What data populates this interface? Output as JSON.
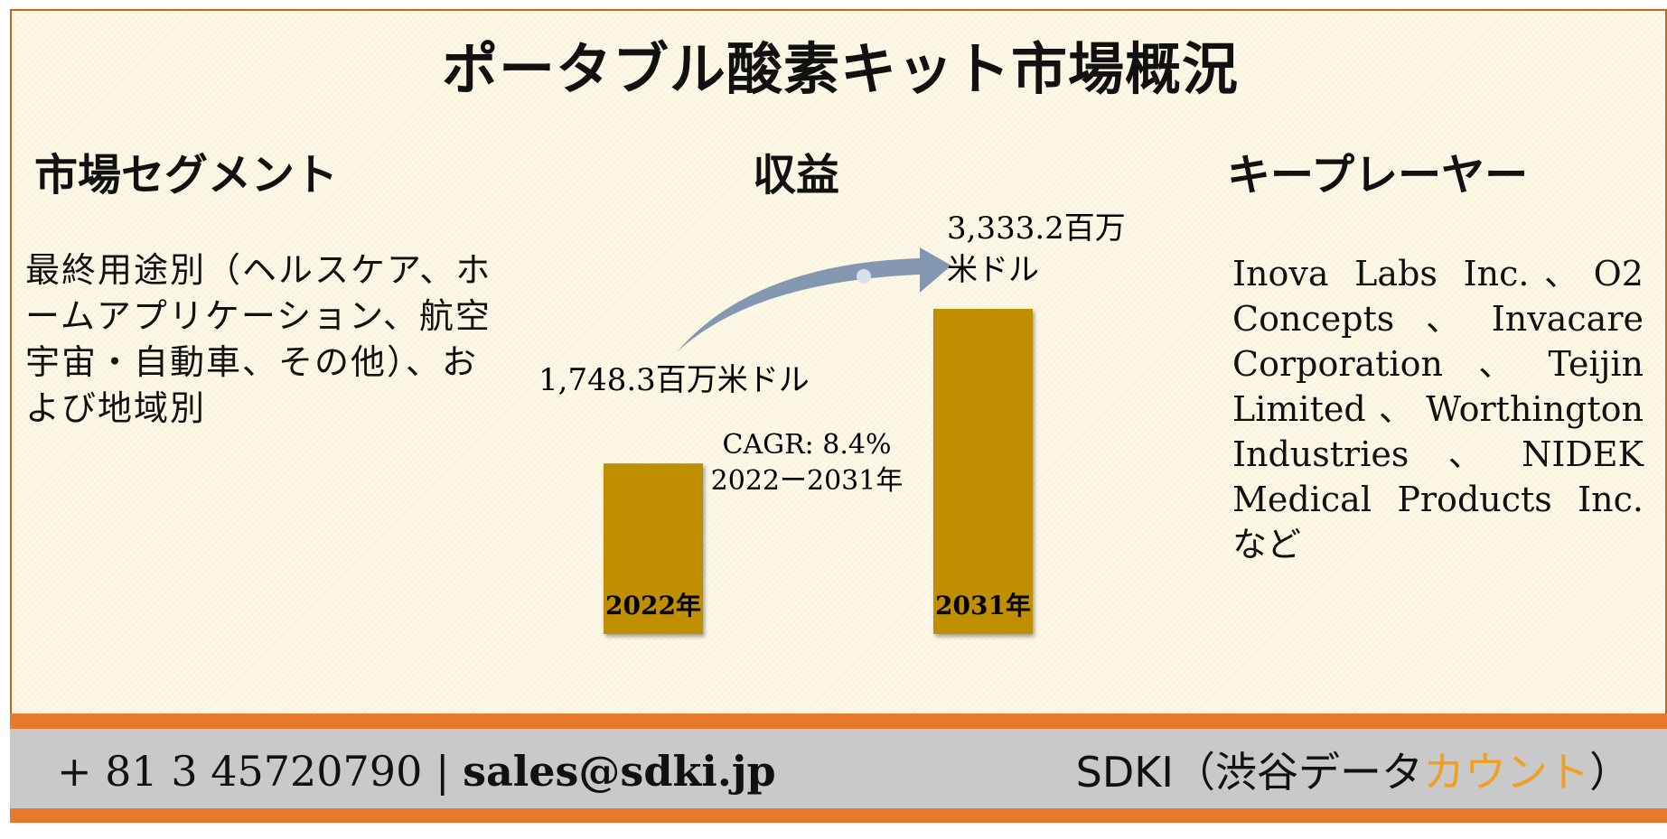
{
  "title": "ポータブル酸素キット市場概況",
  "sections": {
    "segment_heading": "市場セグメント",
    "revenue_heading": "収益",
    "players_heading": "キープレーヤー"
  },
  "segment_text": "最終用途別（ヘルスケア、ホームアプリケーション、航空宇宙・自動車、その他）、および地域別",
  "players_text": "Inova Labs Inc.、O2 Concepts、Invacare Corporation、Teijin Limited、Worthington Industries、NIDEK Medical Products Inc. など",
  "chart_data": {
    "type": "bar",
    "categories": [
      "2022年",
      "2031年"
    ],
    "values": [
      1748.3,
      3333.2
    ],
    "value_labels": [
      "1,748.3百万米ドル",
      "3,333.2百万米ドル"
    ],
    "annotation_line1": "CAGR: 8.4%",
    "annotation_line2": "2022ー2031年",
    "bar_color": "#bf8f00",
    "arrow_color": "#8497b0"
  },
  "footer": {
    "phone": "+ 81 3 45720790",
    "separator": "|",
    "email": "sales@sdki.jp",
    "brand_prefix": "SDKI（渋谷データ",
    "brand_accent": "カウント",
    "brand_suffix": "）"
  },
  "colors": {
    "border": "#c8651b",
    "footer_bar": "#e8782c",
    "footer_bg": "#c9c9c9",
    "brand_accent": "#f0a020"
  }
}
